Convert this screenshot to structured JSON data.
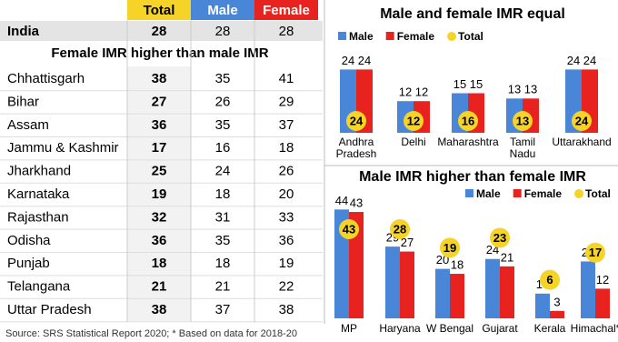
{
  "table": {
    "columns": [
      "Total",
      "Male",
      "Female"
    ],
    "india": {
      "name": "India",
      "values": [
        28,
        28,
        28
      ]
    },
    "section_title": "Female IMR higher than male IMR",
    "rows": [
      [
        "Chhattisgarh",
        38,
        35,
        41
      ],
      [
        "Bihar",
        27,
        26,
        29
      ],
      [
        "Assam",
        36,
        35,
        37
      ],
      [
        "Jammu & Kashmir",
        17,
        16,
        18
      ],
      [
        "Jharkhand",
        25,
        24,
        26
      ],
      [
        "Karnataka",
        19,
        18,
        20
      ],
      [
        "Rajasthan",
        32,
        31,
        33
      ],
      [
        "Odisha",
        36,
        35,
        36
      ],
      [
        "Punjab",
        18,
        18,
        19
      ],
      [
        "Telangana",
        21,
        21,
        22
      ],
      [
        "Uttar Pradesh",
        38,
        37,
        38
      ]
    ]
  },
  "chart_data": [
    {
      "type": "bar",
      "title": "Male and female IMR equal",
      "categories": [
        "Andhra Pradesh",
        "Delhi",
        "Maharashtra",
        "Tamil Nadu",
        "Uttarakhand"
      ],
      "series": [
        {
          "name": "Male",
          "color": "#4a86d8",
          "values": [
            24,
            12,
            15,
            13,
            24
          ]
        },
        {
          "name": "Female",
          "color": "#e8231f",
          "values": [
            24,
            12,
            15,
            13,
            24
          ]
        },
        {
          "name": "Total",
          "color": "#f5d327",
          "values": [
            24,
            12,
            16,
            13,
            24
          ]
        }
      ]
    },
    {
      "type": "bar",
      "title": "Male IMR higher than female IMR",
      "categories": [
        "MP",
        "Haryana",
        "W Bengal",
        "Gujarat",
        "Kerala",
        "Himachal*"
      ],
      "series": [
        {
          "name": "Male",
          "color": "#4a86d8",
          "values": [
            44,
            29,
            20,
            24,
            10,
            23
          ]
        },
        {
          "name": "Female",
          "color": "#e8231f",
          "values": [
            43,
            27,
            18,
            21,
            3,
            12
          ]
        },
        {
          "name": "Total",
          "color": "#f5d327",
          "values": [
            43,
            28,
            19,
            23,
            6,
            17
          ]
        }
      ]
    }
  ],
  "source": "Source: SRS Statistical Report 2020; * Based on data for 2018-20"
}
